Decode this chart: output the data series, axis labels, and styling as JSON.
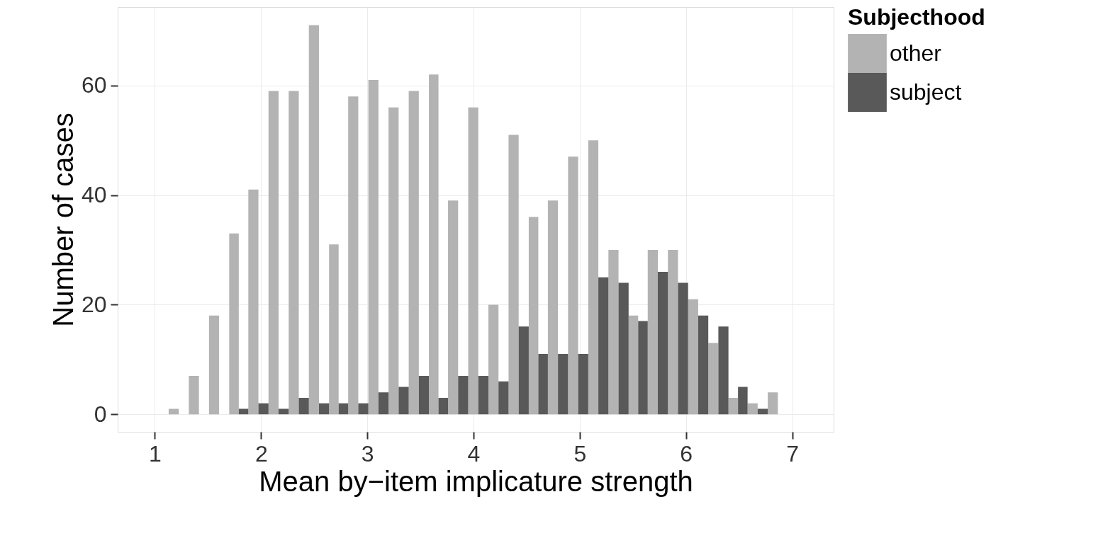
{
  "chart_data": {
    "type": "histogram",
    "xlabel": "Mean by−item implicature strength",
    "ylabel": "Number of cases",
    "legend_title": "Subjecthood",
    "bins": [
      1.13,
      1.32,
      1.51,
      1.7,
      1.88,
      2.07,
      2.26,
      2.45,
      2.64,
      2.82,
      3.01,
      3.2,
      3.39,
      3.58,
      3.76,
      3.95,
      4.14,
      4.33,
      4.52,
      4.7,
      4.89,
      5.08,
      5.27,
      5.46,
      5.64,
      5.83,
      6.02,
      6.21,
      6.4,
      6.58,
      6.77,
      6.96
    ],
    "series": [
      {
        "name": "other",
        "color": "#b3b3b3",
        "values": [
          1,
          7,
          18,
          33,
          41,
          59,
          59,
          71,
          31,
          58,
          61,
          56,
          59,
          62,
          39,
          56,
          20,
          51,
          36,
          39,
          47,
          50,
          30,
          18,
          30,
          30,
          21,
          13,
          3,
          2,
          4
        ]
      },
      {
        "name": "subject",
        "color": "#595959",
        "values": [
          0,
          0,
          0,
          1,
          2,
          1,
          3,
          2,
          2,
          2,
          4,
          5,
          7,
          3,
          7,
          7,
          6,
          16,
          11,
          11,
          11,
          25,
          24,
          17,
          26,
          24,
          18,
          16,
          5,
          1,
          0
        ]
      }
    ],
    "xlim": [
      0.65,
      7.39
    ],
    "ylim": [
      -3.2,
      74.3
    ],
    "xticks": [
      1,
      2,
      3,
      4,
      5,
      6,
      7
    ],
    "yticks": [
      0,
      20,
      40,
      60
    ],
    "grid": true,
    "legend": "right"
  }
}
